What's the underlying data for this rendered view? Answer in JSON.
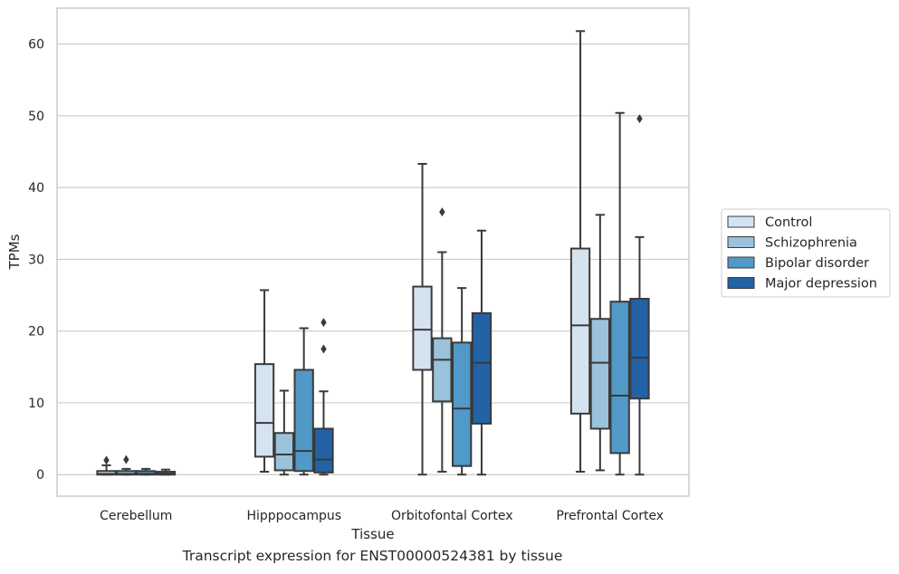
{
  "caption": "Transcript expression for ENST00000524381 by tissue",
  "chart_data": {
    "type": "boxplot",
    "xlabel": "Tissue",
    "ylabel": "TPMs",
    "ylim": [
      -3,
      65
    ],
    "yticks": [
      0,
      10,
      20,
      30,
      40,
      50,
      60
    ],
    "grid": "horizontal",
    "legend_position": "right",
    "categories": [
      "Cerebellum",
      "Hipppocampus",
      "Orbitofontal Cortex",
      "Prefrontal Cortex"
    ],
    "series": [
      {
        "name": "Control",
        "color": "#d5e3f1",
        "boxes": [
          {
            "whislo": 0,
            "q1": 0.0,
            "med": 0.1,
            "q3": 0.5,
            "whishi": 1.3,
            "fliers": [
              2.0
            ]
          },
          {
            "whislo": 0.4,
            "q1": 2.5,
            "med": 7.2,
            "q3": 15.4,
            "whishi": 25.7,
            "fliers": []
          },
          {
            "whislo": 0,
            "q1": 14.6,
            "med": 20.2,
            "q3": 26.2,
            "whishi": 43.3,
            "fliers": []
          },
          {
            "whislo": 0.4,
            "q1": 8.5,
            "med": 20.8,
            "q3": 31.5,
            "whishi": 61.8,
            "fliers": []
          }
        ]
      },
      {
        "name": "Schizophrenia",
        "color": "#9ac2db",
        "boxes": [
          {
            "whislo": 0,
            "q1": 0.0,
            "med": 0.1,
            "q3": 0.5,
            "whishi": 0.8,
            "fliers": [
              2.1
            ]
          },
          {
            "whislo": 0,
            "q1": 0.6,
            "med": 2.8,
            "q3": 5.8,
            "whishi": 11.7,
            "fliers": []
          },
          {
            "whislo": 0.4,
            "q1": 10.2,
            "med": 16.0,
            "q3": 19.0,
            "whishi": 31.0,
            "fliers": [
              36.6
            ]
          },
          {
            "whislo": 0.6,
            "q1": 6.4,
            "med": 15.6,
            "q3": 21.7,
            "whishi": 36.2,
            "fliers": []
          }
        ]
      },
      {
        "name": "Bipolar disorder",
        "color": "#5199c7",
        "boxes": [
          {
            "whislo": 0,
            "q1": 0.0,
            "med": 0.1,
            "q3": 0.5,
            "whishi": 0.8,
            "fliers": []
          },
          {
            "whislo": 0,
            "q1": 0.5,
            "med": 3.3,
            "q3": 14.6,
            "whishi": 20.4,
            "fliers": []
          },
          {
            "whislo": 0,
            "q1": 1.2,
            "med": 9.2,
            "q3": 18.4,
            "whishi": 26.0,
            "fliers": []
          },
          {
            "whislo": 0,
            "q1": 3.0,
            "med": 11.0,
            "q3": 24.1,
            "whishi": 50.4,
            "fliers": []
          }
        ]
      },
      {
        "name": "Major depression",
        "color": "#2462a6",
        "boxes": [
          {
            "whislo": 0,
            "q1": 0.0,
            "med": 0.1,
            "q3": 0.4,
            "whishi": 0.7,
            "fliers": []
          },
          {
            "whislo": 0,
            "q1": 0.3,
            "med": 2.1,
            "q3": 6.4,
            "whishi": 11.6,
            "fliers": [
              17.5,
              21.2
            ]
          },
          {
            "whislo": 0,
            "q1": 7.1,
            "med": 15.6,
            "q3": 22.5,
            "whishi": 34.0,
            "fliers": []
          },
          {
            "whislo": 0,
            "q1": 10.6,
            "med": 16.3,
            "q3": 24.5,
            "whishi": 33.1,
            "fliers": [
              49.6
            ]
          }
        ]
      }
    ]
  }
}
